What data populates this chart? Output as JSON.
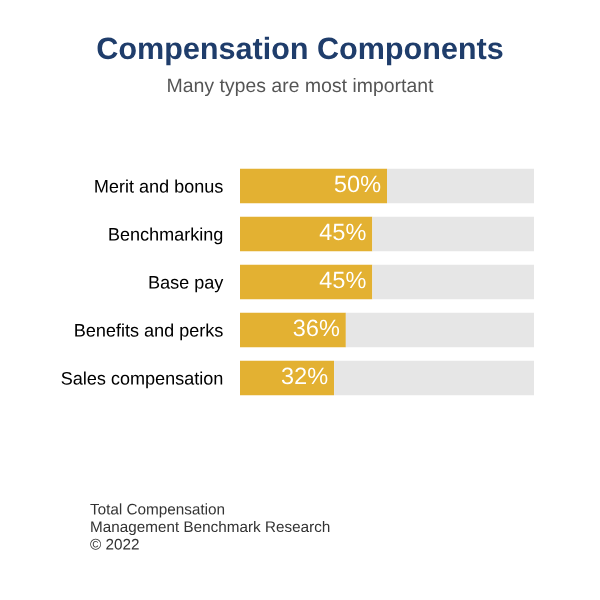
{
  "chart_data": {
    "type": "bar",
    "orientation": "horizontal",
    "stacked": true,
    "title": "Compensation Components",
    "subtitle": "Many types are most important",
    "categories": [
      "Merit and bonus",
      "Benchmarking",
      "Base pay",
      "Benefits and perks",
      "Sales compensation"
    ],
    "series": [
      {
        "color": "#e3b132",
        "values": [
          50,
          45,
          45,
          36,
          32
        ],
        "value_labels": [
          "50%",
          "45%",
          "45%",
          "36%",
          "32%"
        ]
      },
      {
        "color": "#e6e6e6",
        "values": [
          50,
          55,
          55,
          64,
          68
        ]
      }
    ],
    "xlim": [
      0,
      100
    ],
    "tick_labels": "y",
    "grid": false,
    "legend": false,
    "annotations": [
      "Total Compensation\nManagement Benchmark Research\n© 2022"
    ]
  }
}
